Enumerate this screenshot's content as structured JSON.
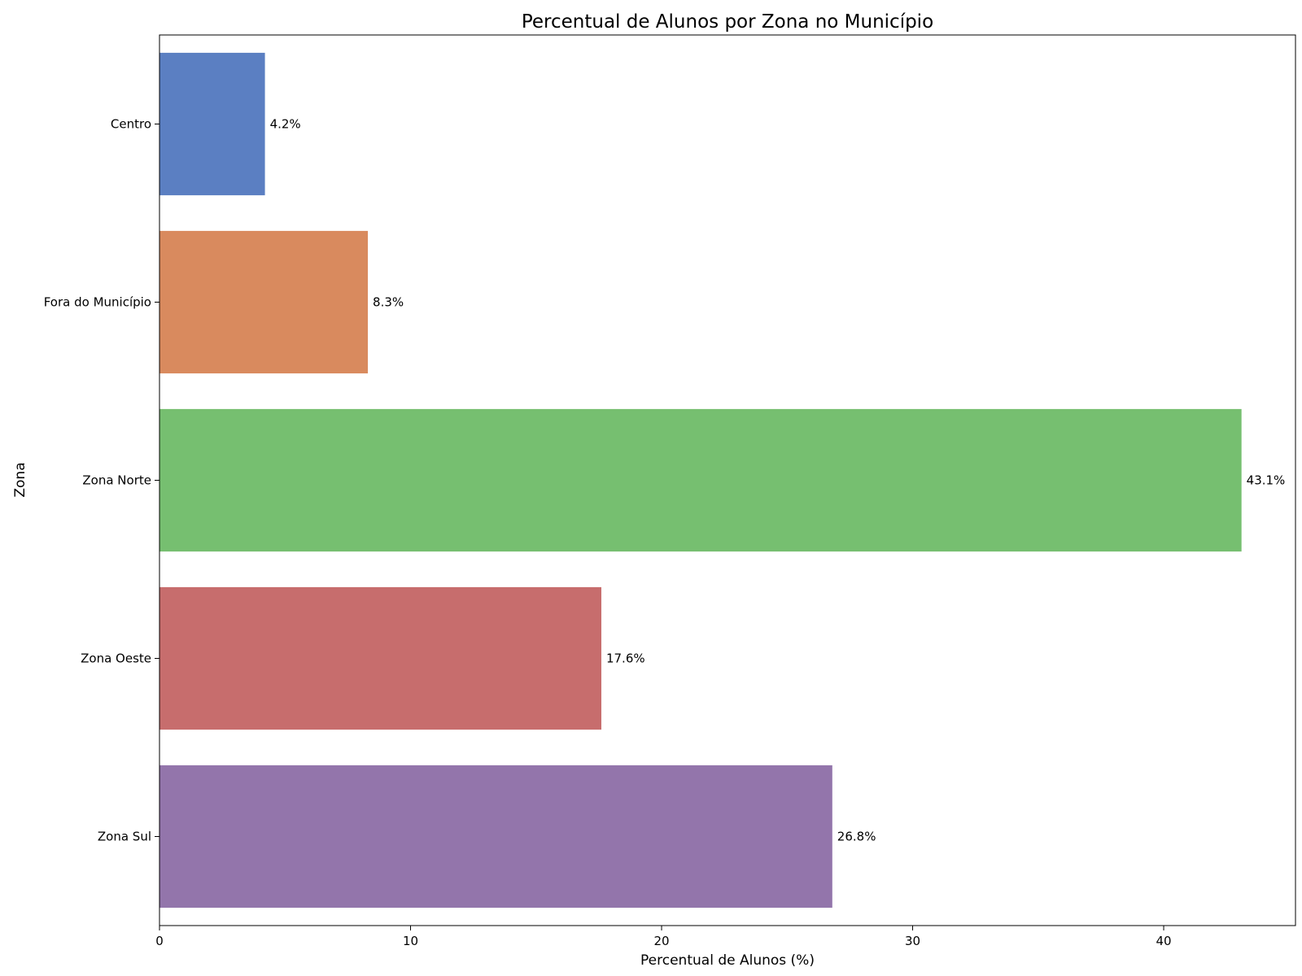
{
  "chart_data": {
    "type": "bar",
    "orientation": "horizontal",
    "title": "Percentual de Alunos por Zona no Município",
    "xlabel": "Percentual de Alunos (%)",
    "ylabel": "Zona",
    "categories": [
      "Centro",
      "Fora do Município",
      "Zona Norte",
      "Zona Oeste",
      "Zona Sul"
    ],
    "values": [
      4.2,
      8.3,
      43.1,
      17.6,
      26.8
    ],
    "data_labels": [
      "4.2%",
      "8.3%",
      "43.1%",
      "17.6%",
      "26.8%"
    ],
    "colors": [
      "#5b7fc2",
      "#d98a5e",
      "#76bf70",
      "#c76d6d",
      "#9375ab"
    ],
    "xlim": [
      0,
      45.25
    ],
    "xticks": [
      0,
      10,
      20,
      30,
      40
    ],
    "xtick_labels": [
      "0",
      "10",
      "20",
      "30",
      "40"
    ],
    "grid": false,
    "legend": "none"
  }
}
